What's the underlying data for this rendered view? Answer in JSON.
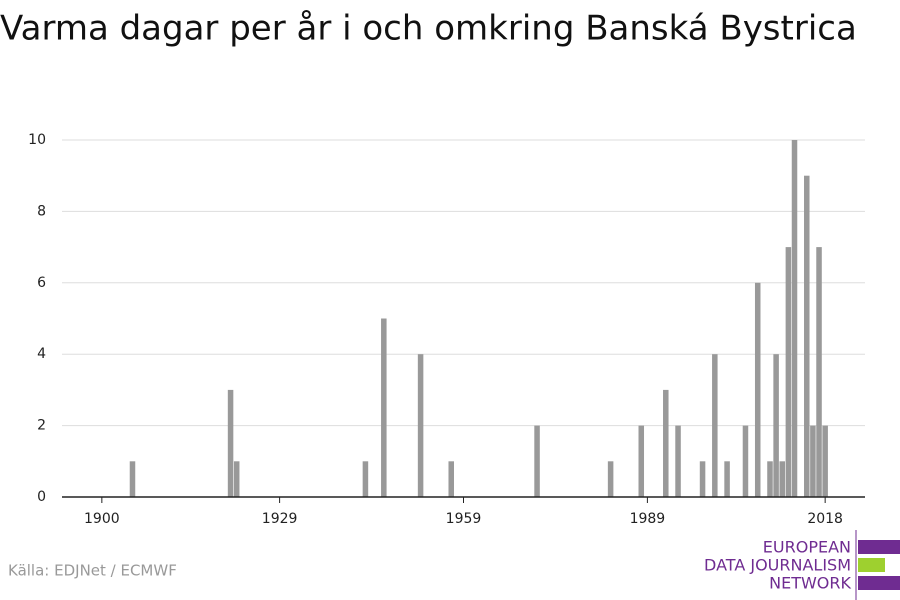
{
  "chart_data": {
    "type": "bar",
    "title": "Varma dagar per år i och omkring Banská Bystrica",
    "source": "Källa: EDJNet / ECMWF",
    "x": [
      1905,
      1921,
      1922,
      1943,
      1946,
      1952,
      1957,
      1971,
      1983,
      1988,
      1992,
      1994,
      1998,
      2000,
      2002,
      2005,
      2007,
      2009,
      2010,
      2011,
      2012,
      2013,
      2015,
      2016,
      2017,
      2018
    ],
    "values": [
      1,
      3,
      1,
      1,
      5,
      4,
      1,
      2,
      1,
      2,
      3,
      2,
      1,
      4,
      1,
      2,
      6,
      1,
      4,
      1,
      7,
      10,
      9,
      2,
      7,
      2
    ],
    "color": "#999999",
    "xlim": [
      1893.5,
      2024.5
    ],
    "xticks": [
      1900,
      1929,
      1959,
      1989,
      2018
    ],
    "ylim": [
      0,
      10
    ],
    "yticks": [
      0,
      2,
      4,
      6,
      8,
      10
    ],
    "grid": true
  },
  "logo": {
    "lines": [
      "EUROPEAN",
      "DATA JOURNALISM",
      "NETWORK"
    ]
  }
}
